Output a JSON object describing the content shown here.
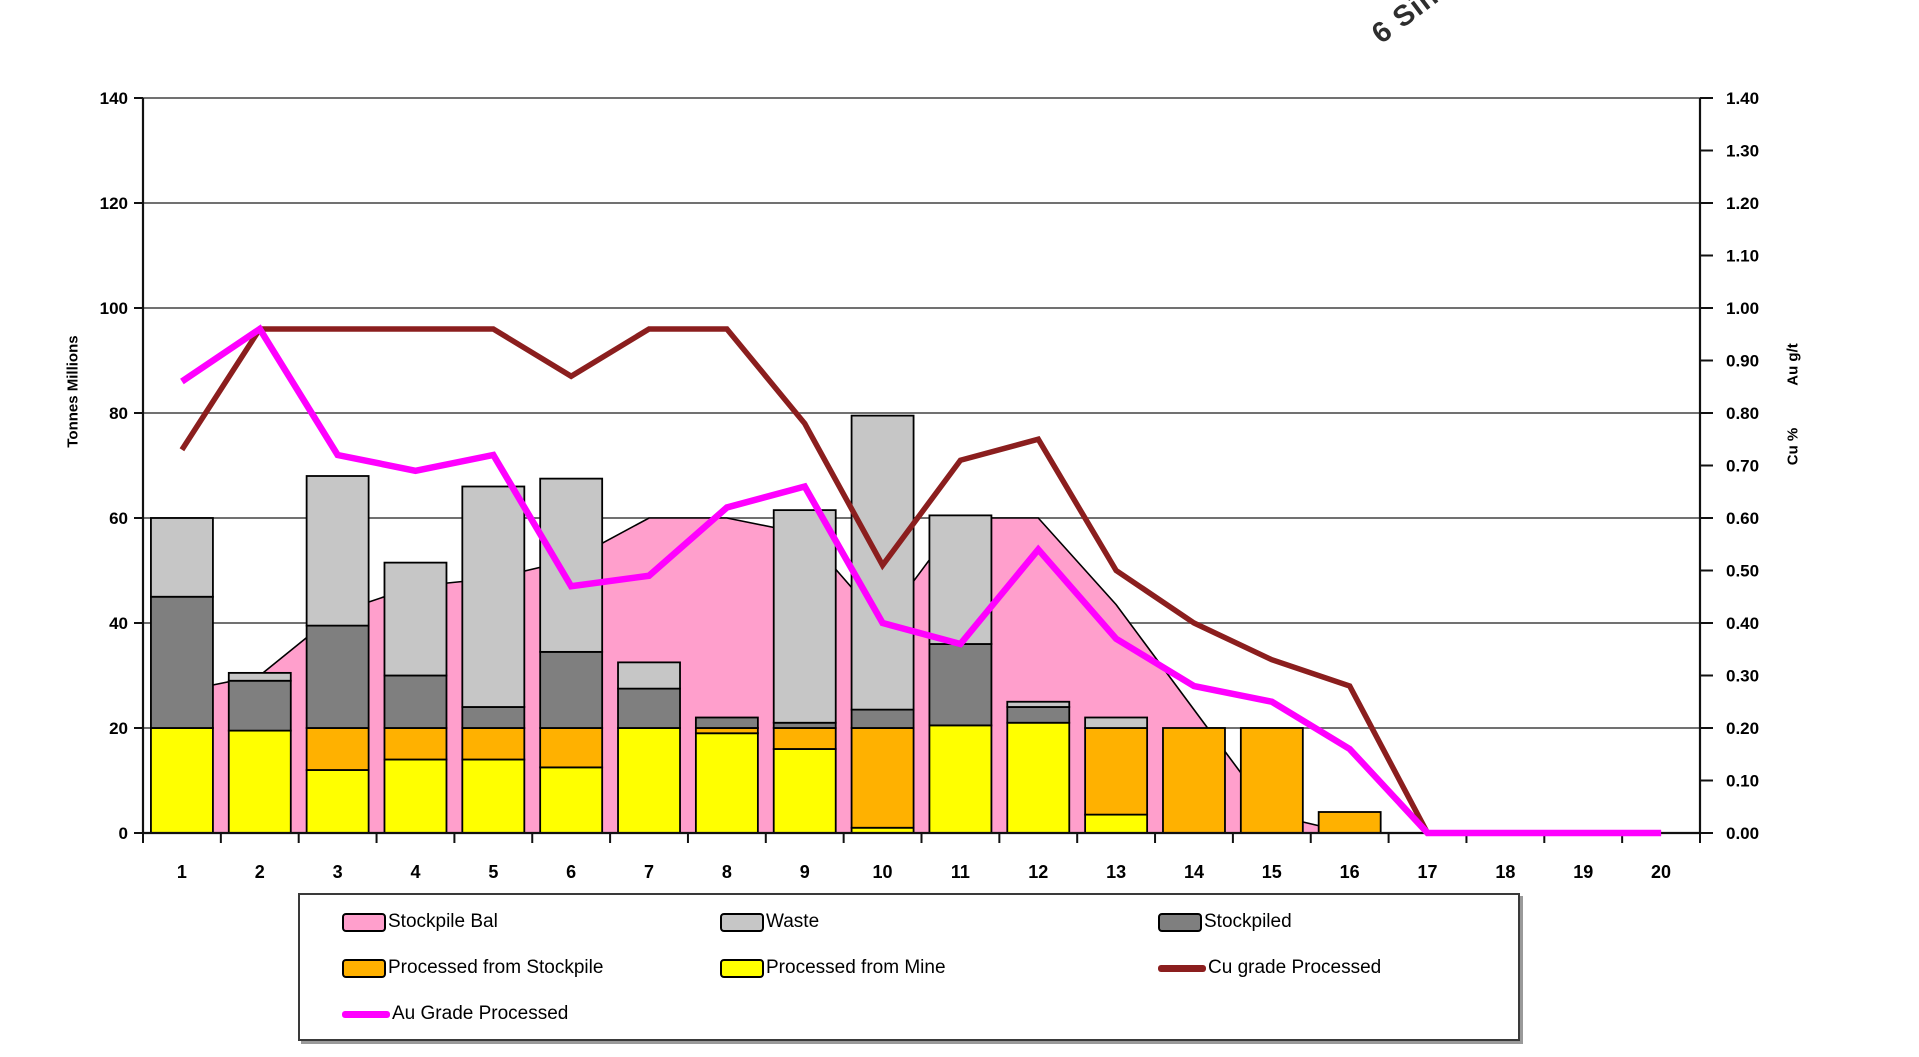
{
  "header": {
    "rotated_label": "6 Sin"
  },
  "left_axis": {
    "title": "Tonnes Millions",
    "min": 0,
    "max": 140,
    "step": 20
  },
  "right_axis": {
    "title_cu": "Cu %",
    "title_au": "Au g/t",
    "min": 0,
    "max": 1.4,
    "step": 0.1
  },
  "chart_data": {
    "type": "combo: stacked bars + area + 2 lines",
    "title": "",
    "xlabel": "",
    "ylabel_left": "Tonnes Millions",
    "ylabel_right": "Cu %  /  Au g/t",
    "left_ylim": [
      0,
      140
    ],
    "right_ylim": [
      0.0,
      1.4
    ],
    "grid": "horizontal gridlines every 20 tonnes (0.20 grade)",
    "legend_position": "bottom box",
    "categories": [
      1,
      2,
      3,
      4,
      5,
      6,
      7,
      8,
      9,
      10,
      11,
      12,
      13,
      14,
      15,
      16,
      17,
      18,
      19,
      20
    ],
    "series": [
      {
        "name": "Stockpile Bal",
        "type": "area",
        "axis": "left",
        "color": "#FF9FCC",
        "values": [
          27,
          30,
          42,
          47,
          48.5,
          52,
          60,
          60,
          57,
          40,
          60,
          60,
          43.5,
          23.5,
          3.5,
          0,
          0,
          0,
          0,
          0
        ]
      },
      {
        "name": "Processed from Mine",
        "type": "bar",
        "stack_index": 1,
        "color": "#FFFF00",
        "values": [
          20,
          19.5,
          12,
          14,
          14,
          12.5,
          20,
          19,
          16,
          1,
          20.5,
          21,
          3.5,
          0,
          0,
          0,
          0,
          0,
          0,
          0
        ]
      },
      {
        "name": "Processed from Stockpile",
        "type": "bar",
        "stack_index": 2,
        "color": "#FFB100",
        "values": [
          0,
          0,
          8,
          6,
          6,
          7.5,
          0,
          1,
          4,
          19,
          0,
          0,
          16.5,
          20,
          20,
          4,
          0,
          0,
          0,
          0
        ]
      },
      {
        "name": "Stockpiled",
        "type": "bar",
        "stack_index": 3,
        "color": "#7F7F7F",
        "values": [
          25,
          9.5,
          19.5,
          10,
          4,
          14.5,
          7.5,
          2,
          1,
          3.5,
          15.5,
          3,
          0,
          0,
          0,
          0,
          0,
          0,
          0,
          0
        ]
      },
      {
        "name": "Waste",
        "type": "bar",
        "stack_index": 4,
        "color": "#C6C6C6",
        "values": [
          15,
          1.5,
          28.5,
          21.5,
          42,
          33,
          5,
          0,
          40.5,
          56,
          24.5,
          1,
          2,
          0,
          0,
          0,
          0,
          0,
          0,
          0
        ]
      },
      {
        "name": "Cu grade Processed",
        "type": "line",
        "axis": "right",
        "color": "#8B1E1E",
        "values": [
          0.73,
          0.96,
          0.96,
          0.96,
          0.96,
          0.87,
          0.96,
          0.96,
          0.78,
          0.51,
          0.71,
          0.75,
          0.5,
          0.4,
          0.33,
          0.28,
          0.0,
          0.0,
          0.0,
          0.0
        ]
      },
      {
        "name": "Au Grade Processed",
        "type": "line",
        "axis": "right",
        "color": "#FF00FF",
        "values": [
          0.86,
          0.96,
          0.72,
          0.69,
          0.72,
          0.47,
          0.49,
          0.62,
          0.66,
          0.4,
          0.36,
          0.54,
          0.37,
          0.28,
          0.25,
          0.16,
          0.0,
          0.0,
          0.0,
          0.0
        ]
      }
    ]
  },
  "legend": {
    "items": [
      {
        "label": "Stockpile Bal",
        "swatch": "rect",
        "color": "#FF9FCC"
      },
      {
        "label": "Waste",
        "swatch": "rect",
        "color": "#C6C6C6"
      },
      {
        "label": "Stockpiled",
        "swatch": "rect",
        "color": "#7F7F7F"
      },
      {
        "label": "Processed from Stockpile",
        "swatch": "rect",
        "color": "#FFB100"
      },
      {
        "label": "Processed from Mine",
        "swatch": "rect",
        "color": "#FFFF00"
      },
      {
        "label": "Cu grade Processed",
        "swatch": "line",
        "color": "#8B1E1E"
      },
      {
        "label": "Au Grade Processed",
        "swatch": "line",
        "color": "#FF00FF"
      }
    ]
  }
}
